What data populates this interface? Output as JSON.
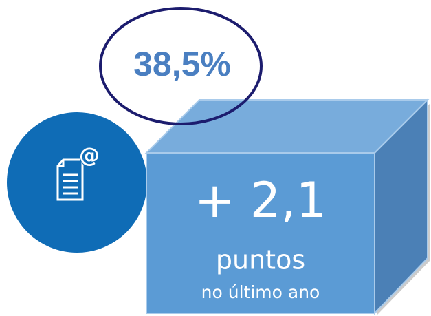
{
  "headline": "38,5%",
  "change": "+ 2,1",
  "unit": "puntos",
  "period": "no último ano"
}
